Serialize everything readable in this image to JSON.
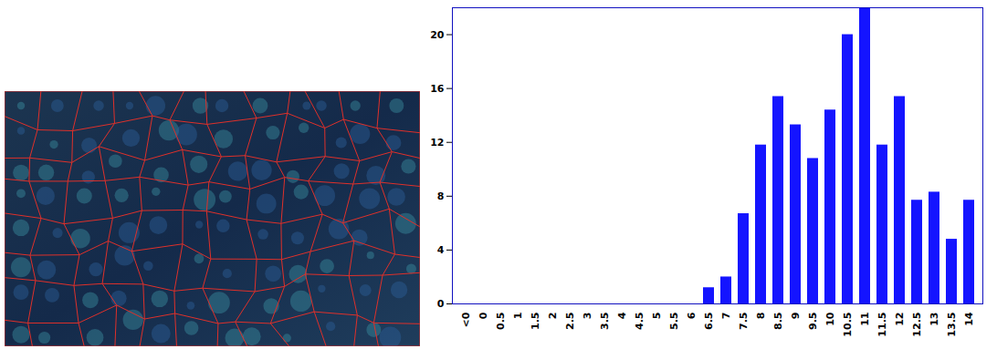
{
  "chart_data": {
    "type": "bar",
    "categories": [
      "<0",
      "0",
      "0.5",
      "1",
      "1.5",
      "2",
      "2.5",
      "3",
      "3.5",
      "4",
      "4.5",
      "5",
      "5.5",
      "6",
      "6.5",
      "7",
      "7.5",
      "8",
      "8.5",
      "9",
      "9.5",
      "10",
      "10.5",
      "11",
      "11.5",
      "12",
      "12.5",
      "13",
      "13.5",
      "14"
    ],
    "values": [
      0,
      0,
      0,
      0,
      0,
      0,
      0,
      0,
      0,
      0,
      0,
      0,
      0,
      0,
      1.2,
      2,
      6.7,
      11.8,
      15.4,
      13.3,
      10.8,
      14.4,
      20,
      22,
      11.8,
      15.4,
      7.7,
      8.3,
      4.8,
      7.7
    ],
    "color": "#1414ff",
    "ylim": [
      0,
      22
    ],
    "yticks": [
      0,
      4,
      8,
      12,
      16,
      20
    ],
    "grid": false
  }
}
